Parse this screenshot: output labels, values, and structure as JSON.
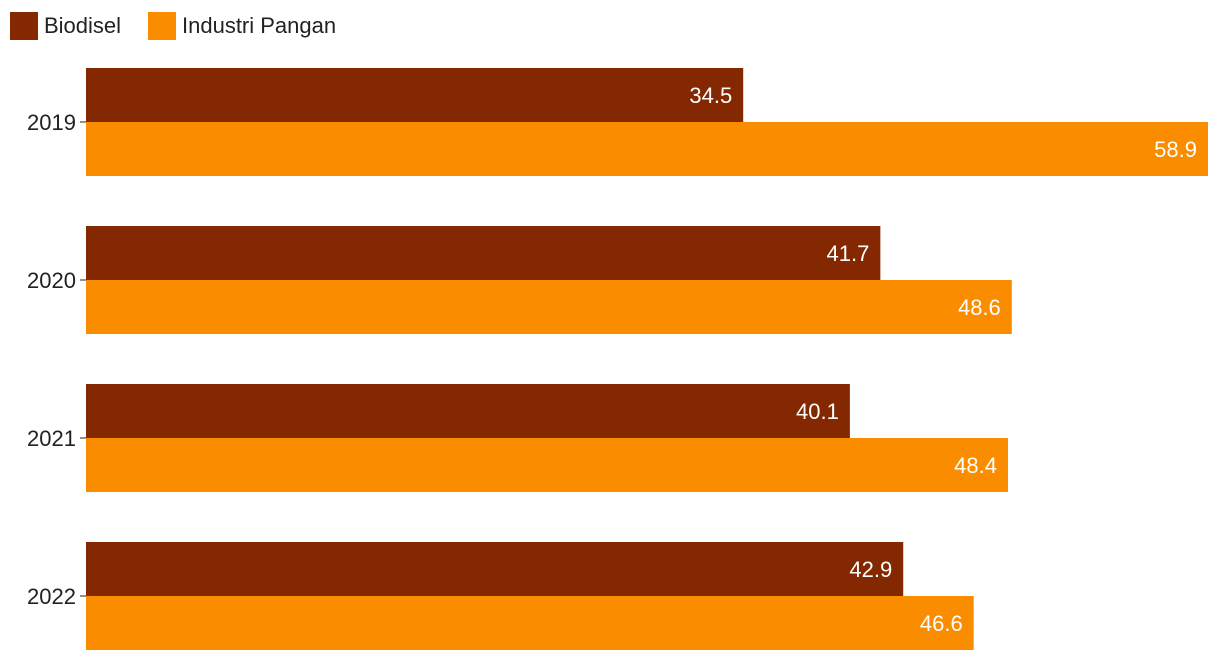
{
  "chart_data": {
    "type": "bar",
    "orientation": "horizontal",
    "categories": [
      "2019",
      "2020",
      "2021",
      "2022"
    ],
    "series": [
      {
        "name": "Biodisel",
        "color": "#832800",
        "values": [
          34.5,
          41.7,
          40.1,
          42.9
        ],
        "labels": [
          "34.5",
          "41.7",
          "40.1",
          "42.9"
        ]
      },
      {
        "name": "Industri Pangan",
        "color": "#fa8c00",
        "values": [
          58.9,
          48.6,
          48.4,
          46.6
        ],
        "labels": [
          "58.9",
          "48.6",
          "48.4",
          "46.6"
        ]
      }
    ],
    "title": "",
    "xlabel": "",
    "ylabel": "",
    "xlim": [
      0,
      58.9
    ],
    "grid": false,
    "legend_position": "top-left",
    "data_labels": "inside-end"
  }
}
